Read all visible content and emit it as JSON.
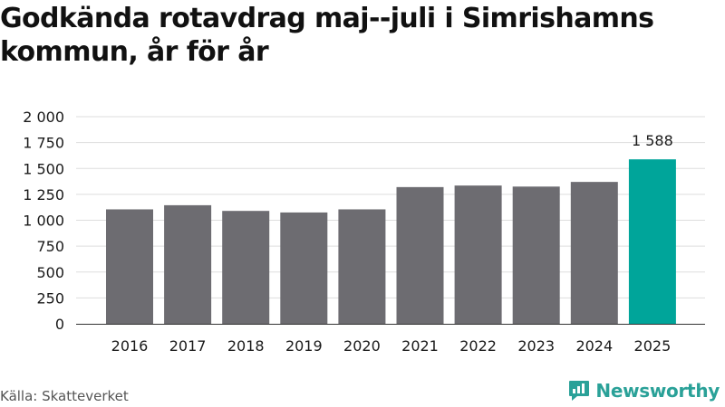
{
  "title": "Godkända rotavdrag maj--juli i Simrishamns kommun, år för år",
  "source": "Källa: Skatteverket",
  "brand": {
    "name": "Newsworthy",
    "logo_icon": "newsworthy-logo-icon",
    "color": "#2aa198"
  },
  "chart_data": {
    "type": "bar",
    "title": "Godkända rotavdrag maj--juli i Simrishamns kommun, år för år",
    "xlabel": "",
    "ylabel": "",
    "categories": [
      "2016",
      "2017",
      "2018",
      "2019",
      "2020",
      "2021",
      "2022",
      "2023",
      "2024",
      "2025"
    ],
    "values": [
      1105,
      1145,
      1090,
      1075,
      1105,
      1320,
      1335,
      1325,
      1370,
      1588
    ],
    "ylim": [
      0,
      2000
    ],
    "yticks": [
      0,
      250,
      500,
      750,
      1000,
      1250,
      1500,
      1750,
      2000
    ],
    "ytick_labels": [
      "0",
      "250",
      "500",
      "750",
      "1 000",
      "1 250",
      "1 500",
      "1 750",
      "2 000"
    ],
    "grid": true,
    "highlight_index": 9,
    "data_labels": [
      {
        "index": 9,
        "text": "1 588"
      }
    ],
    "colors": {
      "bar": "#6d6c71",
      "highlight": "#00a59a",
      "grid": "#dddddd",
      "axis": "#333333"
    }
  }
}
